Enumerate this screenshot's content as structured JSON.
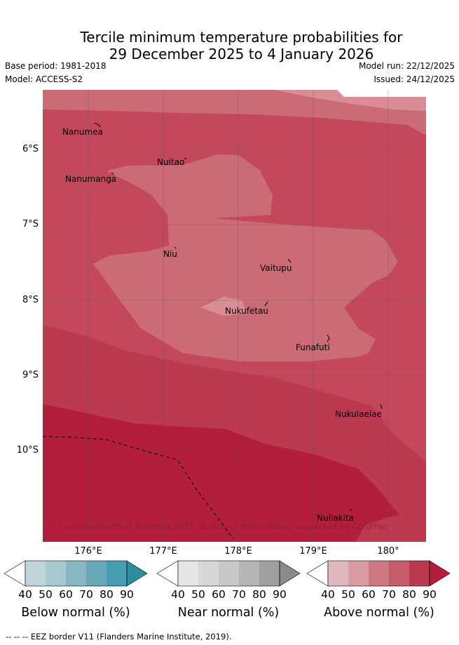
{
  "title": {
    "line1": "Tercile minimum temperature probabilities for",
    "line2": "29 December 2025 to 4 January 2026"
  },
  "meta": {
    "base_period": "Base period: 1981-2018",
    "model": "Model: ACCESS-S2",
    "model_run": "Model run: 22/12/2025",
    "issued": "Issued: 24/12/2025"
  },
  "map": {
    "lat_labels": [
      "6°S",
      "7°S",
      "8°S",
      "9°S",
      "10°S"
    ],
    "lon_labels": [
      "176°E",
      "177°E",
      "178°E",
      "179°E",
      "180°"
    ],
    "places": [
      "Nanumea",
      "Nuitao",
      "Nanumanga",
      "Niu",
      "Vaitupu",
      "Nukufetau",
      "Funafuti",
      "Nukulaelae",
      "Nuilakita"
    ],
    "copyright": "© Commonwealth of Australia 2025, Bureau of Meteorology, supported by COSPPac"
  },
  "legend": {
    "ticks": [
      "40",
      "50",
      "60",
      "70",
      "80",
      "90"
    ],
    "below_title": "Below normal (%)",
    "near_title": "Near normal (%)",
    "above_title": "Above normal (%)",
    "below_colors": [
      "#bed4db",
      "#a6c8cf",
      "#88b6c3",
      "#69a8b9",
      "#47a0b2",
      "#2f8ca0"
    ],
    "near_colors": [
      "#e7e7e7",
      "#d8d8d8",
      "#c8c8c8",
      "#b5b5b5",
      "#a0a0a0",
      "#8a8a8a"
    ],
    "above_colors": [
      "#e2b8bf",
      "#d99aa3",
      "#cf7883",
      "#c65c6a",
      "#bb3a4f",
      "#b21e3c"
    ]
  },
  "footnote": "--  --  -- EEZ border V11 (Flanders Marine Institute, 2019)."
}
